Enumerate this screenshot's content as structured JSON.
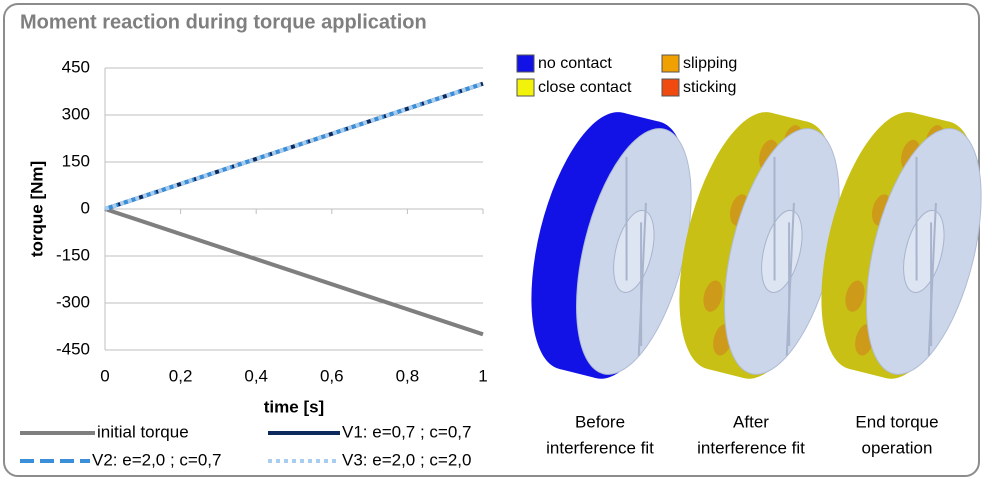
{
  "title": "Moment reaction during torque application",
  "chart_data": {
    "type": "line",
    "x_label": "time [s]",
    "y_label": "torque [Nm]",
    "x": [
      0,
      1
    ],
    "series": [
      {
        "name": "initial torque",
        "color": "#7f7f7f",
        "dash": "solid",
        "values": [
          0,
          -400
        ]
      },
      {
        "name": "V1: e=0,7 ; c=0,7",
        "color": "#0d2a5e",
        "dash": "solid",
        "values": [
          0,
          400
        ]
      },
      {
        "name": "V2: e=2,0 ; c=0,7",
        "color": "#3b8fd9",
        "dash": "dashed",
        "values": [
          0,
          400
        ]
      },
      {
        "name": "V3: e=2,0 ; c=2,0",
        "color": "#a8cdee",
        "dash": "dotted",
        "values": [
          0,
          400
        ]
      }
    ],
    "xlim": [
      0,
      1
    ],
    "ylim": [
      -450,
      450
    ],
    "xticks": [
      0,
      {
        "value": 0.2,
        "label": "0,2"
      },
      {
        "value": 0.4,
        "label": "0,4"
      },
      {
        "value": 0.6,
        "label": "0,6"
      },
      {
        "value": 0.8,
        "label": "0,8"
      },
      1
    ],
    "yticks": [
      -450,
      -300,
      -150,
      0,
      150,
      300,
      450
    ],
    "grid": true
  },
  "contact_legend": [
    {
      "label": "no contact",
      "color": "#1212e6"
    },
    {
      "label": "close contact",
      "color": "#f2f20a"
    },
    {
      "label": "slipping",
      "color": "#f0a000"
    },
    {
      "label": "sticking",
      "color": "#f04a10"
    }
  ],
  "captions": [
    [
      "Before",
      "interference fit"
    ],
    [
      "After",
      "interference fit"
    ],
    [
      "End torque",
      "operation"
    ]
  ]
}
